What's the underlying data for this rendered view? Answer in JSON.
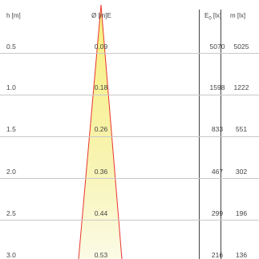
{
  "headers": {
    "height": "h [m]",
    "diameter": "Ø [m]E",
    "e0_main": "E",
    "e0_sub": "0",
    "e0_unit": " [lx]",
    "em": "m [lx]"
  },
  "rows": [
    {
      "h": "0.5",
      "d": "0.09",
      "e0": "5070",
      "em": "5025"
    },
    {
      "h": "1.0",
      "d": "0.18",
      "e0": "1598",
      "em": "1222"
    },
    {
      "h": "1.5",
      "d": "0.26",
      "e0": "833",
      "em": "551"
    },
    {
      "h": "2.0",
      "d": "0.36",
      "e0": "467",
      "em": "302"
    },
    {
      "h": "2.5",
      "d": "0.44",
      "e0": "299",
      "em": "196"
    },
    {
      "h": "3.0",
      "d": "0.53",
      "e0": "216",
      "em": "136"
    }
  ],
  "colors": {
    "beam_edge": "#e8352c",
    "beam_fill_top": "#f6f07c",
    "beam_fill_bottom": "#fbfbe6",
    "grid": "#c8c8c8",
    "column_divider": "#444444"
  }
}
